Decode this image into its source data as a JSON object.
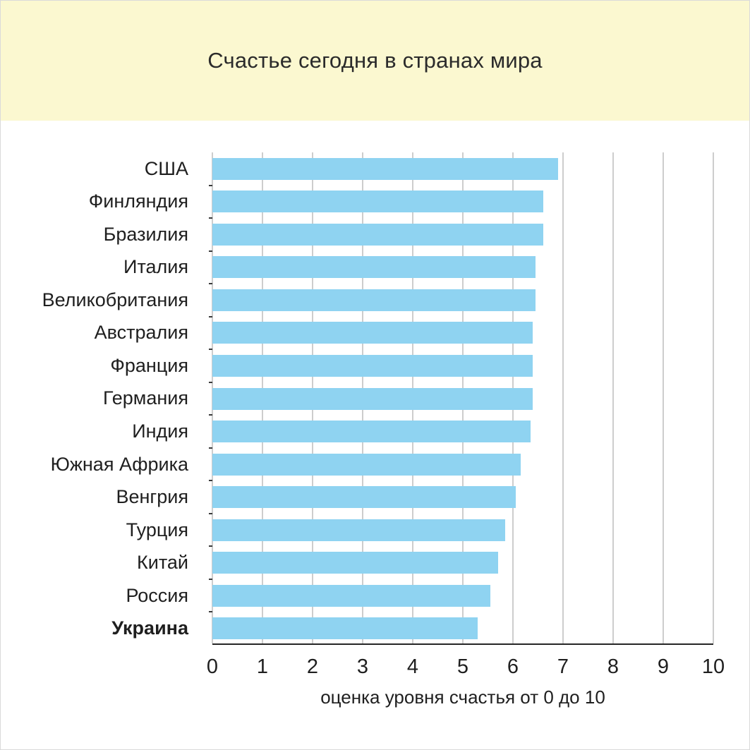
{
  "header": {
    "title": "Счастье сегодня в странах мира"
  },
  "chart_data": {
    "type": "bar",
    "orientation": "horizontal",
    "title": "Счастье сегодня в странах мира",
    "xlabel": "оценка уровня счастья от 0 до 10",
    "xlim": [
      0,
      10
    ],
    "xticks": [
      0,
      1,
      2,
      3,
      4,
      5,
      6,
      7,
      8,
      9,
      10
    ],
    "grid": true,
    "legend": "none",
    "categories": [
      "США",
      "Финляндия",
      "Бразилия",
      "Италия",
      "Великобритания",
      "Австралия",
      "Франция",
      "Германия",
      "Индия",
      "Южная Африка",
      "Венгрия",
      "Турция",
      "Китай",
      "Россия",
      "Украина"
    ],
    "values": [
      6.9,
      6.6,
      6.6,
      6.45,
      6.45,
      6.4,
      6.4,
      6.4,
      6.35,
      6.15,
      6.05,
      5.85,
      5.7,
      5.55,
      5.3
    ],
    "highlighted_category": "Украина"
  },
  "colors": {
    "banner_background": "#FBF8D0",
    "bar": "#8FD3F1",
    "grid": "#CDCDCD",
    "axis": "#262626",
    "text": "#1F1F1F"
  }
}
